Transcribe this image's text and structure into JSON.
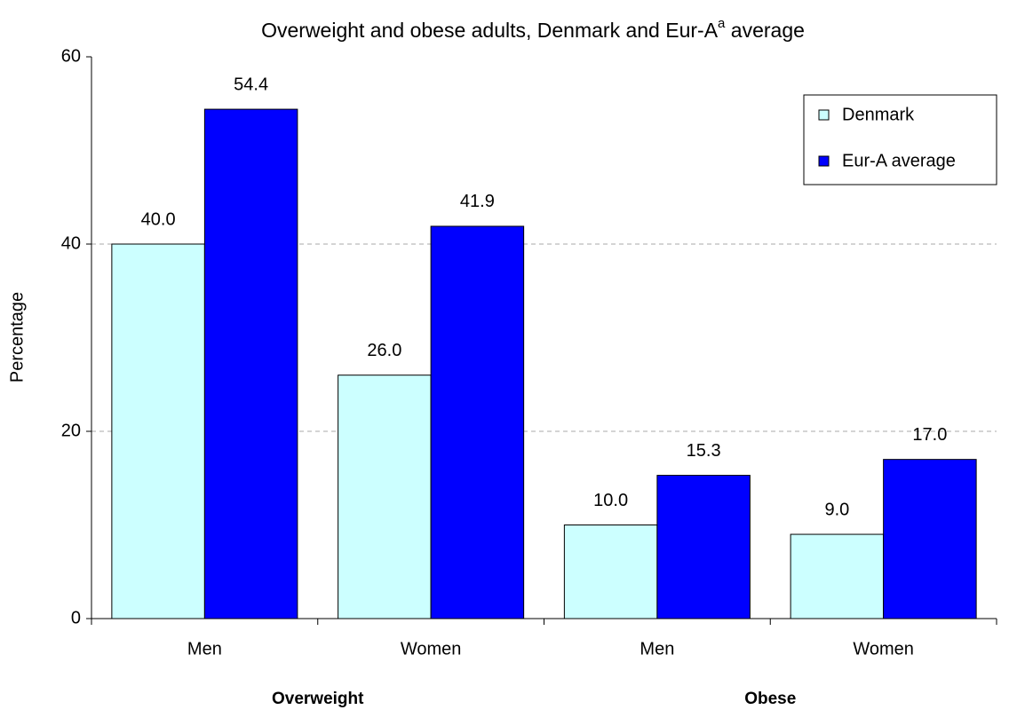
{
  "chart_data": {
    "type": "bar",
    "title": [
      "Overweight and obese adults, Denmark and Eur-A",
      "a",
      " average"
    ],
    "y_label": "Percentage",
    "categories": [
      [
        "Overweight",
        "Men"
      ],
      [
        "Overweight",
        "Women"
      ],
      [
        "Obese",
        "Men"
      ],
      [
        "Obese",
        "Women"
      ]
    ],
    "series": [
      {
        "name": "Denmark",
        "color": "#ccffff",
        "values": [
          40,
          26,
          10,
          9
        ],
        "value_labels": [
          "40.0",
          "26.0",
          "10.0",
          "9.0"
        ]
      },
      {
        "name": "Eur-A average",
        "color": "#0000ff",
        "values": [
          54.4,
          41.9,
          15.3,
          17
        ],
        "value_labels": [
          "54.4",
          "41.9",
          "15.3",
          "17.0"
        ]
      }
    ],
    "ylim": [
      0,
      60
    ],
    "yticks": [
      0,
      20,
      40,
      60
    ],
    "grid": true,
    "legend": "top-right"
  }
}
